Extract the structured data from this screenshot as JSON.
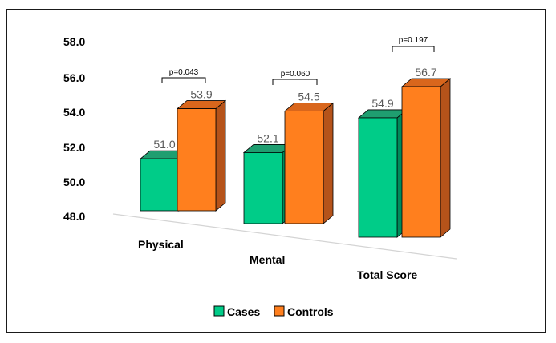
{
  "chart_data": {
    "type": "bar",
    "style": "3d-clustered",
    "categories": [
      "Physical",
      "Mental",
      "Total Score"
    ],
    "series": [
      {
        "name": "Cases",
        "values": [
          51.0,
          52.1,
          54.9
        ],
        "labels": [
          "51.0",
          "52.1",
          "54.9"
        ]
      },
      {
        "name": "Controls",
        "values": [
          53.9,
          54.5,
          56.7
        ],
        "labels": [
          "53.9",
          "54.5",
          "56.7"
        ]
      }
    ],
    "y_ticks": [
      "48.0",
      "50.0",
      "52.0",
      "54.0",
      "56.0",
      "58.0"
    ],
    "ylim": [
      48,
      58
    ],
    "annotations": [
      "p=0.043",
      "p=0.060",
      "p=0.197"
    ],
    "legend_position": "bottom",
    "title": "",
    "xlabel": "",
    "ylabel": ""
  },
  "colors": {
    "cases_front": "#00cc88",
    "cases_side": "#008a5a",
    "cases_top": "#1f9e70",
    "controls_front": "#ff7f1e",
    "controls_side": "#b5531a",
    "controls_top": "#d9661c"
  }
}
